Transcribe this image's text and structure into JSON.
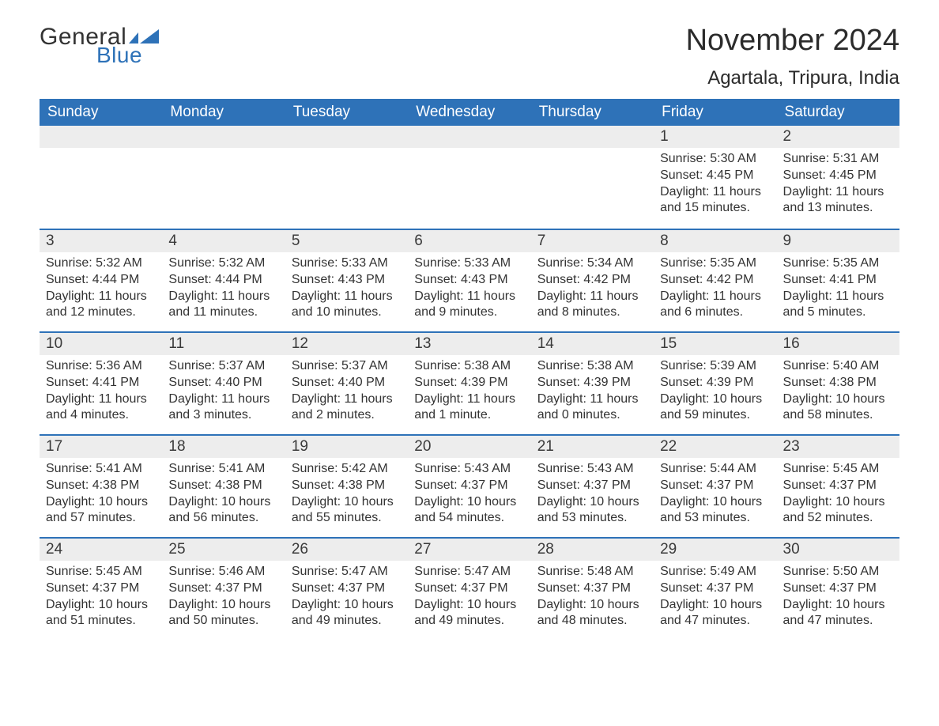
{
  "logo": {
    "text1": "General",
    "text2": "Blue",
    "icon_color": "#2e72b8"
  },
  "header": {
    "month_title": "November 2024",
    "location": "Agartala, Tripura, India"
  },
  "colors": {
    "header_bg": "#2e72b8",
    "header_text": "#ffffff",
    "daynum_bg": "#ededed",
    "row_border": "#2e72b8",
    "body_text": "#333333",
    "page_bg": "#ffffff"
  },
  "typography": {
    "month_title_size": 38,
    "location_size": 24,
    "weekday_size": 19,
    "daynum_size": 19,
    "body_size": 16,
    "font_family": "Arial"
  },
  "weekdays": [
    "Sunday",
    "Monday",
    "Tuesday",
    "Wednesday",
    "Thursday",
    "Friday",
    "Saturday"
  ],
  "weeks": [
    [
      null,
      null,
      null,
      null,
      null,
      {
        "n": "1",
        "sr": "Sunrise: 5:30 AM",
        "ss": "Sunset: 4:45 PM",
        "dl": "Daylight: 11 hours and 15 minutes."
      },
      {
        "n": "2",
        "sr": "Sunrise: 5:31 AM",
        "ss": "Sunset: 4:45 PM",
        "dl": "Daylight: 11 hours and 13 minutes."
      }
    ],
    [
      {
        "n": "3",
        "sr": "Sunrise: 5:32 AM",
        "ss": "Sunset: 4:44 PM",
        "dl": "Daylight: 11 hours and 12 minutes."
      },
      {
        "n": "4",
        "sr": "Sunrise: 5:32 AM",
        "ss": "Sunset: 4:44 PM",
        "dl": "Daylight: 11 hours and 11 minutes."
      },
      {
        "n": "5",
        "sr": "Sunrise: 5:33 AM",
        "ss": "Sunset: 4:43 PM",
        "dl": "Daylight: 11 hours and 10 minutes."
      },
      {
        "n": "6",
        "sr": "Sunrise: 5:33 AM",
        "ss": "Sunset: 4:43 PM",
        "dl": "Daylight: 11 hours and 9 minutes."
      },
      {
        "n": "7",
        "sr": "Sunrise: 5:34 AM",
        "ss": "Sunset: 4:42 PM",
        "dl": "Daylight: 11 hours and 8 minutes."
      },
      {
        "n": "8",
        "sr": "Sunrise: 5:35 AM",
        "ss": "Sunset: 4:42 PM",
        "dl": "Daylight: 11 hours and 6 minutes."
      },
      {
        "n": "9",
        "sr": "Sunrise: 5:35 AM",
        "ss": "Sunset: 4:41 PM",
        "dl": "Daylight: 11 hours and 5 minutes."
      }
    ],
    [
      {
        "n": "10",
        "sr": "Sunrise: 5:36 AM",
        "ss": "Sunset: 4:41 PM",
        "dl": "Daylight: 11 hours and 4 minutes."
      },
      {
        "n": "11",
        "sr": "Sunrise: 5:37 AM",
        "ss": "Sunset: 4:40 PM",
        "dl": "Daylight: 11 hours and 3 minutes."
      },
      {
        "n": "12",
        "sr": "Sunrise: 5:37 AM",
        "ss": "Sunset: 4:40 PM",
        "dl": "Daylight: 11 hours and 2 minutes."
      },
      {
        "n": "13",
        "sr": "Sunrise: 5:38 AM",
        "ss": "Sunset: 4:39 PM",
        "dl": "Daylight: 11 hours and 1 minute."
      },
      {
        "n": "14",
        "sr": "Sunrise: 5:38 AM",
        "ss": "Sunset: 4:39 PM",
        "dl": "Daylight: 11 hours and 0 minutes."
      },
      {
        "n": "15",
        "sr": "Sunrise: 5:39 AM",
        "ss": "Sunset: 4:39 PM",
        "dl": "Daylight: 10 hours and 59 minutes."
      },
      {
        "n": "16",
        "sr": "Sunrise: 5:40 AM",
        "ss": "Sunset: 4:38 PM",
        "dl": "Daylight: 10 hours and 58 minutes."
      }
    ],
    [
      {
        "n": "17",
        "sr": "Sunrise: 5:41 AM",
        "ss": "Sunset: 4:38 PM",
        "dl": "Daylight: 10 hours and 57 minutes."
      },
      {
        "n": "18",
        "sr": "Sunrise: 5:41 AM",
        "ss": "Sunset: 4:38 PM",
        "dl": "Daylight: 10 hours and 56 minutes."
      },
      {
        "n": "19",
        "sr": "Sunrise: 5:42 AM",
        "ss": "Sunset: 4:38 PM",
        "dl": "Daylight: 10 hours and 55 minutes."
      },
      {
        "n": "20",
        "sr": "Sunrise: 5:43 AM",
        "ss": "Sunset: 4:37 PM",
        "dl": "Daylight: 10 hours and 54 minutes."
      },
      {
        "n": "21",
        "sr": "Sunrise: 5:43 AM",
        "ss": "Sunset: 4:37 PM",
        "dl": "Daylight: 10 hours and 53 minutes."
      },
      {
        "n": "22",
        "sr": "Sunrise: 5:44 AM",
        "ss": "Sunset: 4:37 PM",
        "dl": "Daylight: 10 hours and 53 minutes."
      },
      {
        "n": "23",
        "sr": "Sunrise: 5:45 AM",
        "ss": "Sunset: 4:37 PM",
        "dl": "Daylight: 10 hours and 52 minutes."
      }
    ],
    [
      {
        "n": "24",
        "sr": "Sunrise: 5:45 AM",
        "ss": "Sunset: 4:37 PM",
        "dl": "Daylight: 10 hours and 51 minutes."
      },
      {
        "n": "25",
        "sr": "Sunrise: 5:46 AM",
        "ss": "Sunset: 4:37 PM",
        "dl": "Daylight: 10 hours and 50 minutes."
      },
      {
        "n": "26",
        "sr": "Sunrise: 5:47 AM",
        "ss": "Sunset: 4:37 PM",
        "dl": "Daylight: 10 hours and 49 minutes."
      },
      {
        "n": "27",
        "sr": "Sunrise: 5:47 AM",
        "ss": "Sunset: 4:37 PM",
        "dl": "Daylight: 10 hours and 49 minutes."
      },
      {
        "n": "28",
        "sr": "Sunrise: 5:48 AM",
        "ss": "Sunset: 4:37 PM",
        "dl": "Daylight: 10 hours and 48 minutes."
      },
      {
        "n": "29",
        "sr": "Sunrise: 5:49 AM",
        "ss": "Sunset: 4:37 PM",
        "dl": "Daylight: 10 hours and 47 minutes."
      },
      {
        "n": "30",
        "sr": "Sunrise: 5:50 AM",
        "ss": "Sunset: 4:37 PM",
        "dl": "Daylight: 10 hours and 47 minutes."
      }
    ]
  ]
}
